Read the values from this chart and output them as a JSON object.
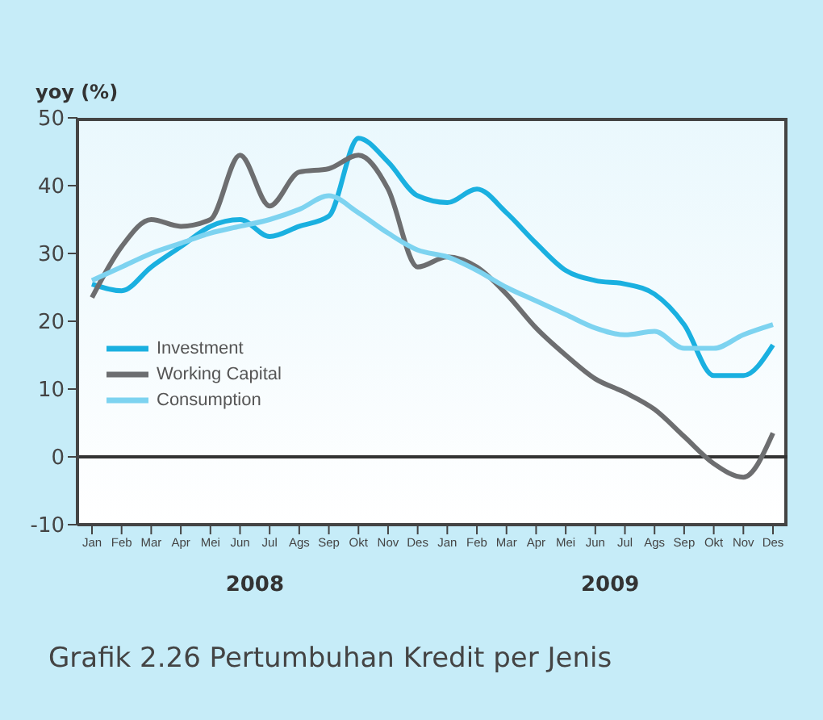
{
  "chart_data": {
    "type": "line",
    "title": "Grafik 2.26 Pertumbuhan Kredit per Jenis",
    "ylabel": "yoy (%)",
    "categories": [
      "Jan",
      "Feb",
      "Mar",
      "Apr",
      "Mei",
      "Jun",
      "Jul",
      "Ags",
      "Sep",
      "Okt",
      "Nov",
      "Des",
      "Jan",
      "Feb",
      "Mar",
      "Apr",
      "Mei",
      "Jun",
      "Jul",
      "Ags",
      "Sep",
      "Okt",
      "Nov",
      "Des"
    ],
    "annotations": [
      "2008",
      "2009"
    ],
    "series": [
      {
        "name": "Investment",
        "color": "#1ab0e0",
        "values": [
          25.5,
          24.5,
          28,
          31,
          34,
          35,
          32.5,
          34,
          35.5,
          47,
          43.5,
          38.5,
          37.5,
          39.5,
          36,
          31.5,
          27.5,
          26,
          25.5,
          24,
          19.5,
          12,
          12,
          16.5
        ]
      },
      {
        "name": "Working Capital",
        "color": "#6d6e70",
        "values": [
          23.5,
          31,
          35,
          34,
          35,
          44.5,
          37,
          42,
          42.5,
          44.5,
          39.5,
          28,
          29.5,
          28,
          24,
          19,
          15,
          11.5,
          9.5,
          7,
          3,
          -1,
          -3,
          3.5
        ]
      },
      {
        "name": "Consumption",
        "color": "#7dd3f0",
        "values": [
          26,
          28,
          30,
          31.5,
          33,
          34,
          35,
          36.5,
          38.5,
          36,
          33,
          30.5,
          29.5,
          27.5,
          25,
          23,
          21,
          19,
          18,
          18.5,
          16,
          16,
          18,
          19.5
        ]
      }
    ],
    "ylim": [
      -10,
      50
    ],
    "yticks": [
      -10,
      0,
      10,
      20,
      30,
      40,
      50
    ],
    "ref_lines": [
      {
        "axis": "y",
        "value": 0,
        "color": "#333333"
      }
    ],
    "grid": false,
    "legend": "bottom left",
    "marker": "none",
    "line_style": "solid"
  }
}
